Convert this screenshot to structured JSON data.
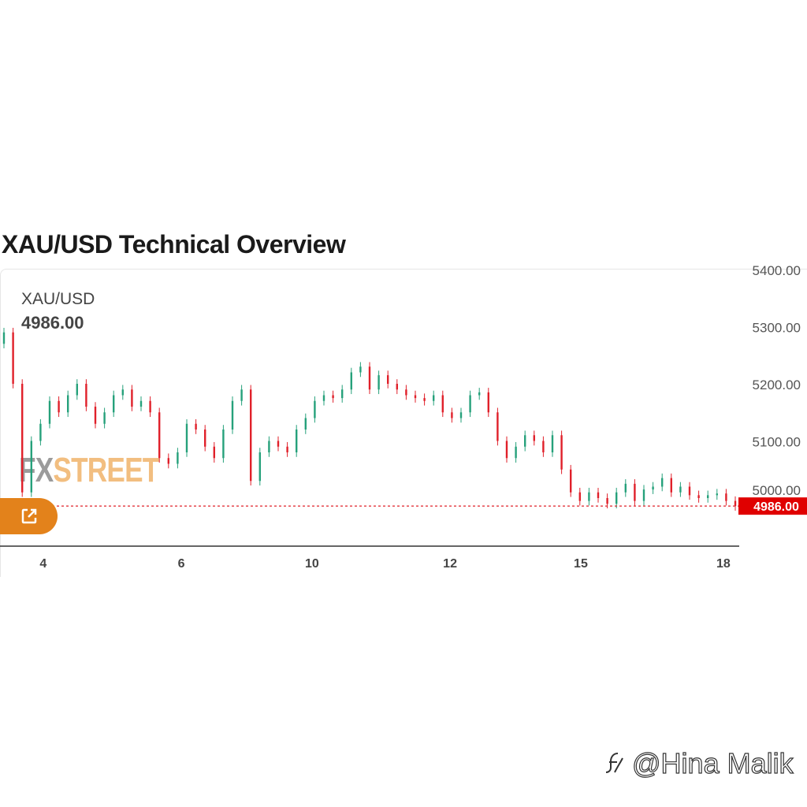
{
  "page_title": "XAU/USD Technical Overview",
  "widget": {
    "symbol": "XAU/USD",
    "price": "4986.00",
    "watermark_fx": "FX",
    "watermark_street": "STREET",
    "open_icon": "external-link-icon"
  },
  "credit": {
    "icon": "platform-logo-icon",
    "text": "@Hina Malik"
  },
  "colors": {
    "up": "#26a17b",
    "down": "#e0202a",
    "last_price_bg": "#e00000",
    "button": "#e3821b"
  },
  "chart_data": {
    "type": "candlestick",
    "title": "XAU/USD",
    "y_ticks": [
      "5400.00",
      "5300.00",
      "5200.00",
      "5100.00",
      "5000.00"
    ],
    "ylim": [
      4950,
      5400
    ],
    "last_price": 4986,
    "last_price_label": "4986.00",
    "x_ticks": [
      {
        "label": "4",
        "index": 4.3
      },
      {
        "label": "6",
        "index": 19.4
      },
      {
        "label": "10",
        "index": 33.7
      },
      {
        "label": "12",
        "index": 48.8
      },
      {
        "label": "15",
        "index": 63.1
      },
      {
        "label": "18",
        "index": 78.7
      }
    ],
    "first_open": 5270,
    "close": [
      5290,
      5200,
      5010,
      5100,
      5130,
      5170,
      5150,
      5180,
      5200,
      5160,
      5130,
      5150,
      5180,
      5190,
      5160,
      5170,
      5150,
      5070,
      5060,
      5080,
      5130,
      5120,
      5090,
      5070,
      5120,
      5170,
      5190,
      5030,
      5080,
      5100,
      5090,
      5080,
      5120,
      5140,
      5170,
      5180,
      5175,
      5190,
      5220,
      5230,
      5190,
      5215,
      5200,
      5190,
      5180,
      5175,
      5170,
      5180,
      5150,
      5140,
      5150,
      5180,
      5185,
      5150,
      5100,
      5070,
      5090,
      5110,
      5100,
      5080,
      5110,
      5050,
      5010,
      4995,
      5010,
      5000,
      4990,
      5010,
      5025,
      4995,
      5015,
      5020,
      5035,
      5010,
      5020,
      5005,
      5000,
      5005,
      5008,
      4995,
      4986
    ]
  }
}
